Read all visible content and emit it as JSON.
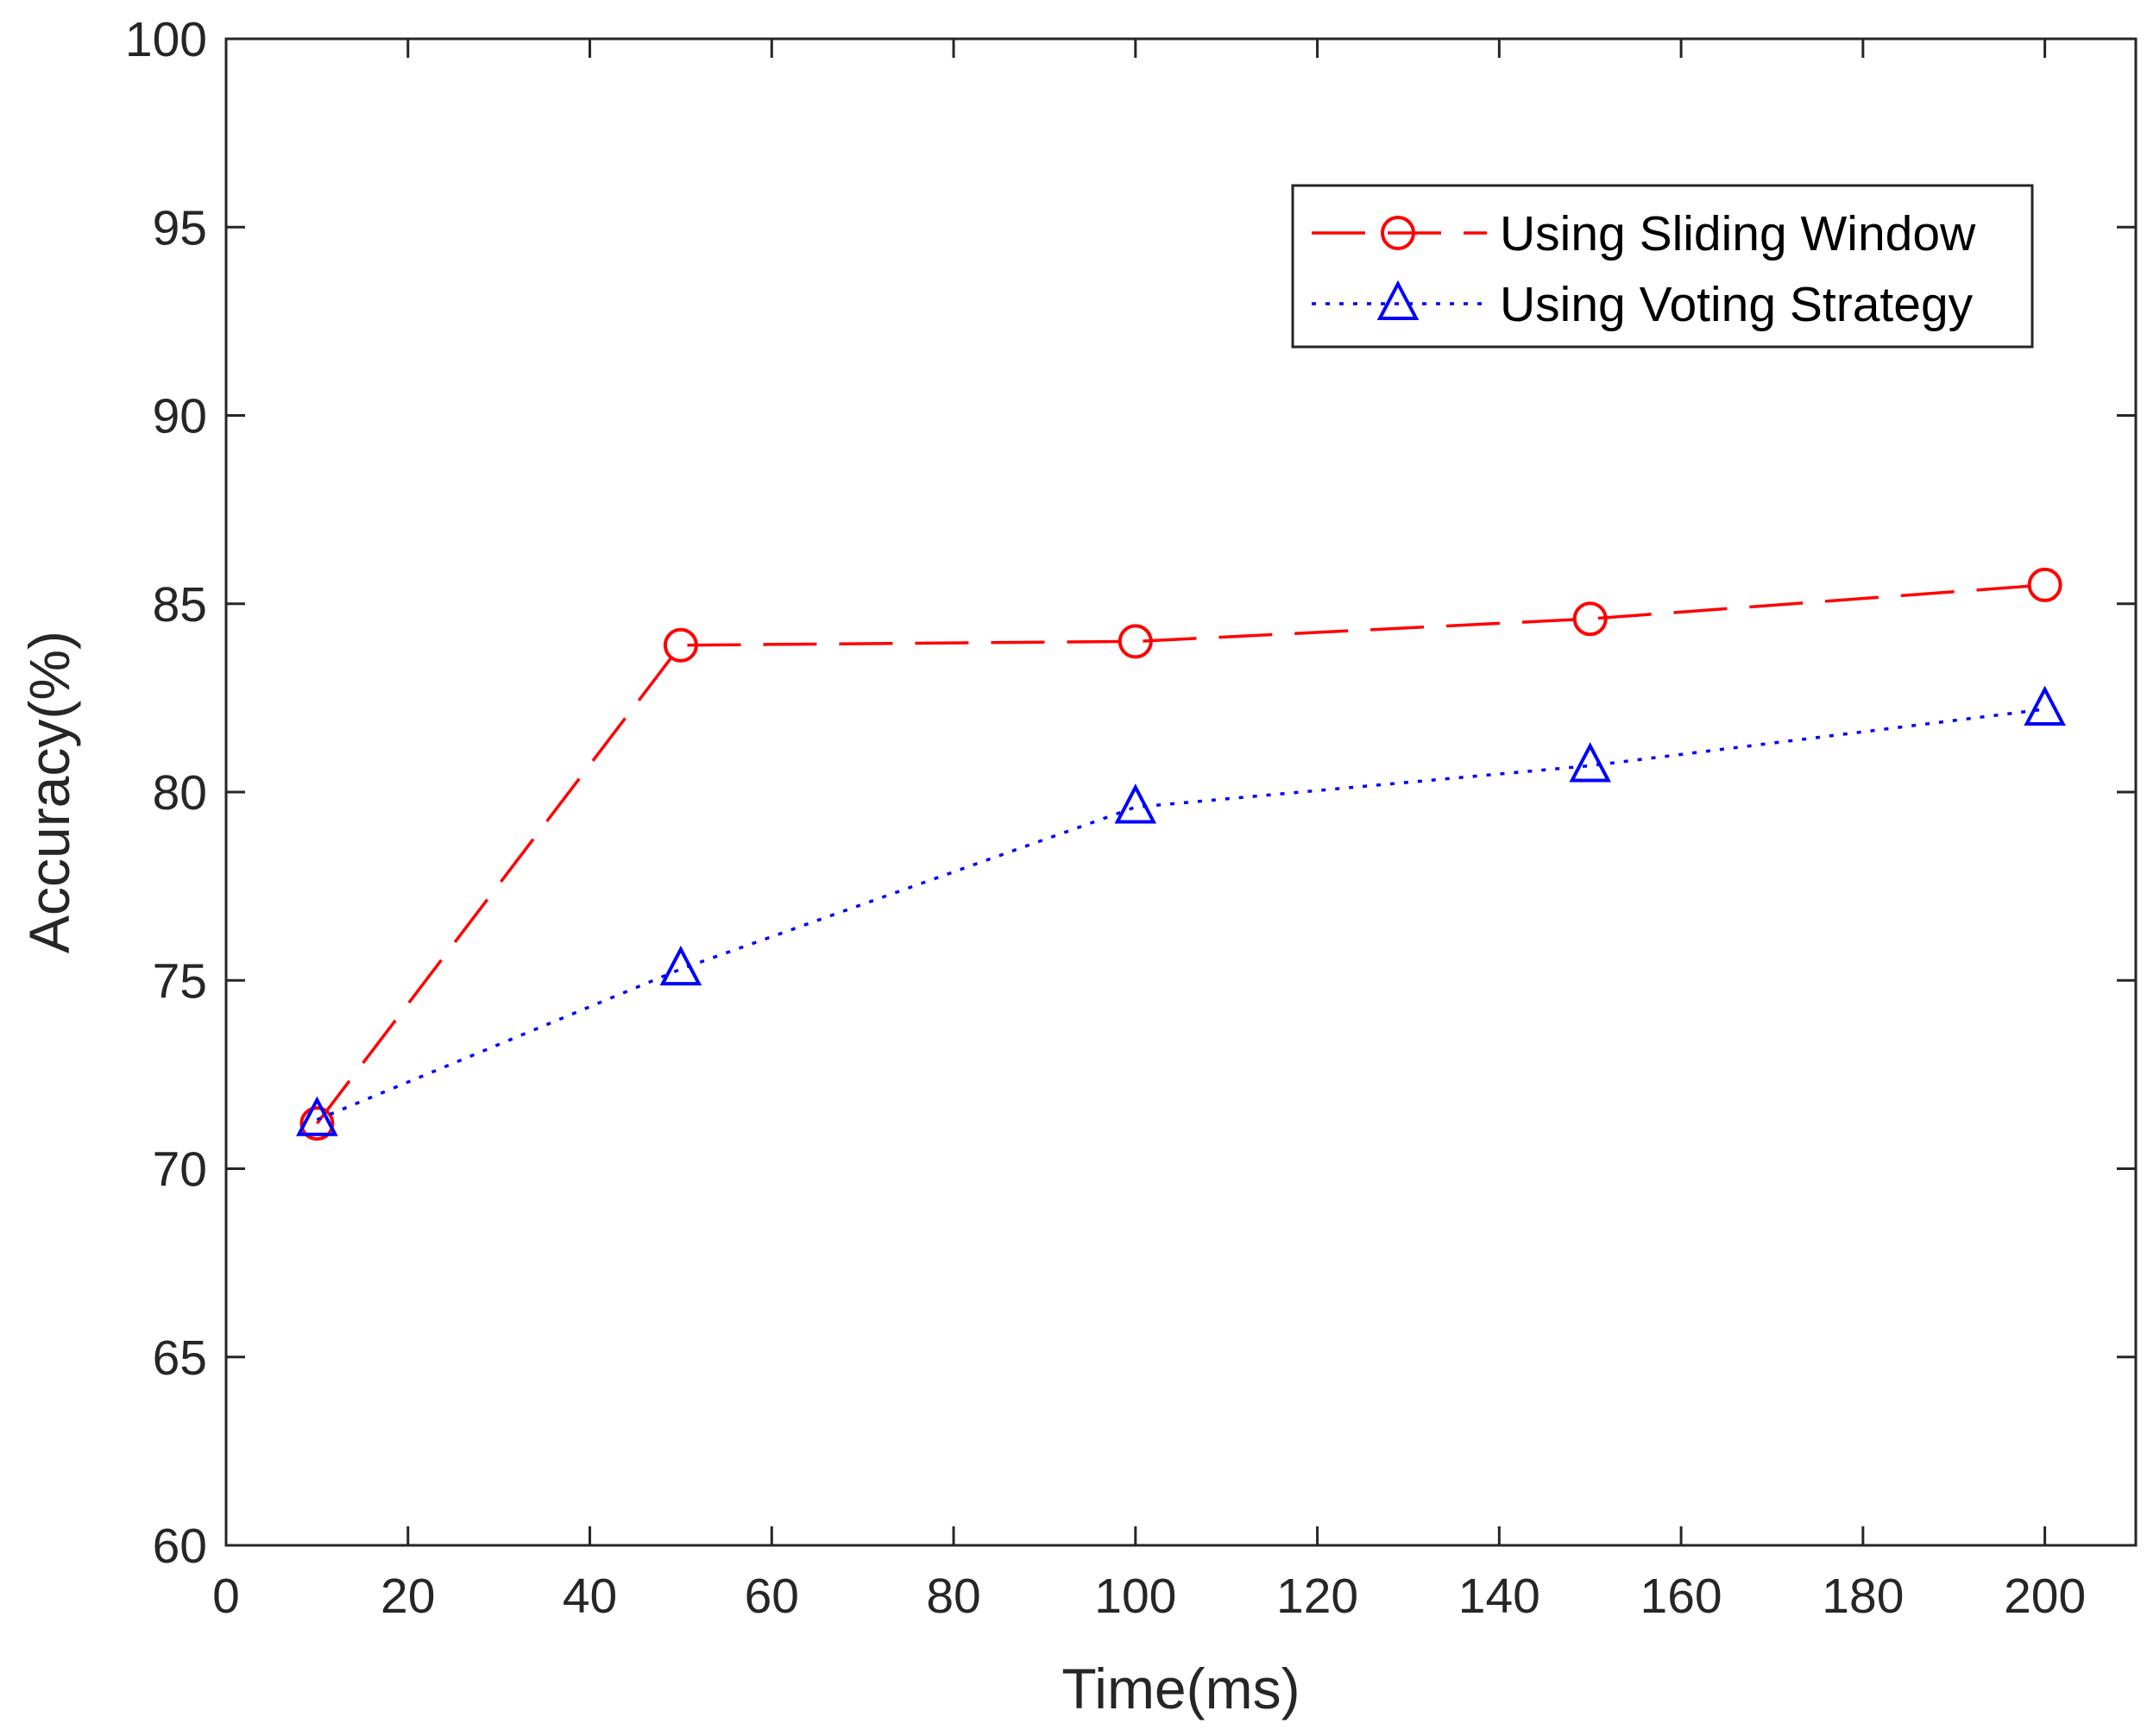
{
  "chart_data": {
    "type": "line",
    "title": "",
    "xlabel": "Time(ms)",
    "ylabel": "Accuracy(%)",
    "xlim": [
      0,
      210
    ],
    "ylim": [
      60,
      100
    ],
    "xticks": [
      0,
      20,
      40,
      60,
      80,
      100,
      120,
      140,
      160,
      180,
      200
    ],
    "yticks": [
      60,
      65,
      70,
      75,
      80,
      85,
      90,
      95,
      100
    ],
    "x": [
      10,
      50,
      100,
      150,
      200
    ],
    "grid": false,
    "legend_position": "top-right",
    "series": [
      {
        "name": "Using Sliding Window",
        "values": [
          71.2,
          83.9,
          84.0,
          84.6,
          85.5
        ],
        "color": "#ff0000",
        "line_style": "dashed",
        "marker": "circle"
      },
      {
        "name": "Using Voting Strategy",
        "values": [
          71.3,
          75.3,
          79.6,
          80.7,
          82.2
        ],
        "color": "#0000ff",
        "line_style": "dotted",
        "marker": "triangle"
      }
    ]
  }
}
